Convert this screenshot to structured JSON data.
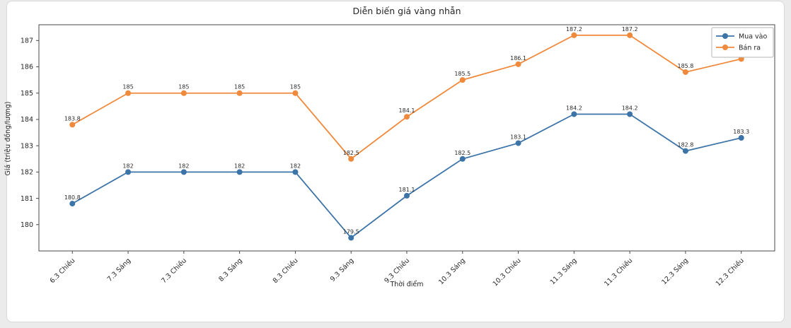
{
  "card": {
    "page_background": "#ebebeb",
    "background": "#ffffff",
    "border_color": "#d9d9d9"
  },
  "chart_data": {
    "type": "line",
    "title": "Diễn biến giá vàng nhẫn",
    "xlabel": "Thời điểm",
    "ylabel": "Giá (triệu đồng/lượng)",
    "categories": [
      "6.3 Chiều",
      "7.3 Sáng",
      "7.3 Chiều",
      "8.3 Sáng",
      "8.3 Chiều",
      "9.3 Sáng",
      "9.3 Chiều",
      "10.3 Sáng",
      "10.3 Chiều",
      "11.3 Sáng",
      "11.3 Chiều",
      "12.3 Sáng",
      "12.3 Chiều"
    ],
    "series": [
      {
        "name": "Mua vào",
        "color": "#3d74a8",
        "values": [
          180.8,
          182,
          182,
          182,
          182,
          179.5,
          181.1,
          182.5,
          183.1,
          184.2,
          184.2,
          182.8,
          183.3
        ]
      },
      {
        "name": "Bán ra",
        "color": "#ef8a3d",
        "values": [
          183.8,
          185,
          185,
          185,
          185,
          182.5,
          184.1,
          185.5,
          186.1,
          187.2,
          187.2,
          185.8,
          186.3
        ]
      }
    ],
    "yticks": [
      180,
      181,
      182,
      183,
      184,
      185,
      186,
      187
    ],
    "ylim": [
      179.0,
      187.6
    ],
    "grid": false,
    "legend_position": "upper-right",
    "data_labels": true,
    "x_tick_rotation": 45,
    "axis_color": "#4a4a4a",
    "legend_border_color": "#b5b5b5"
  }
}
